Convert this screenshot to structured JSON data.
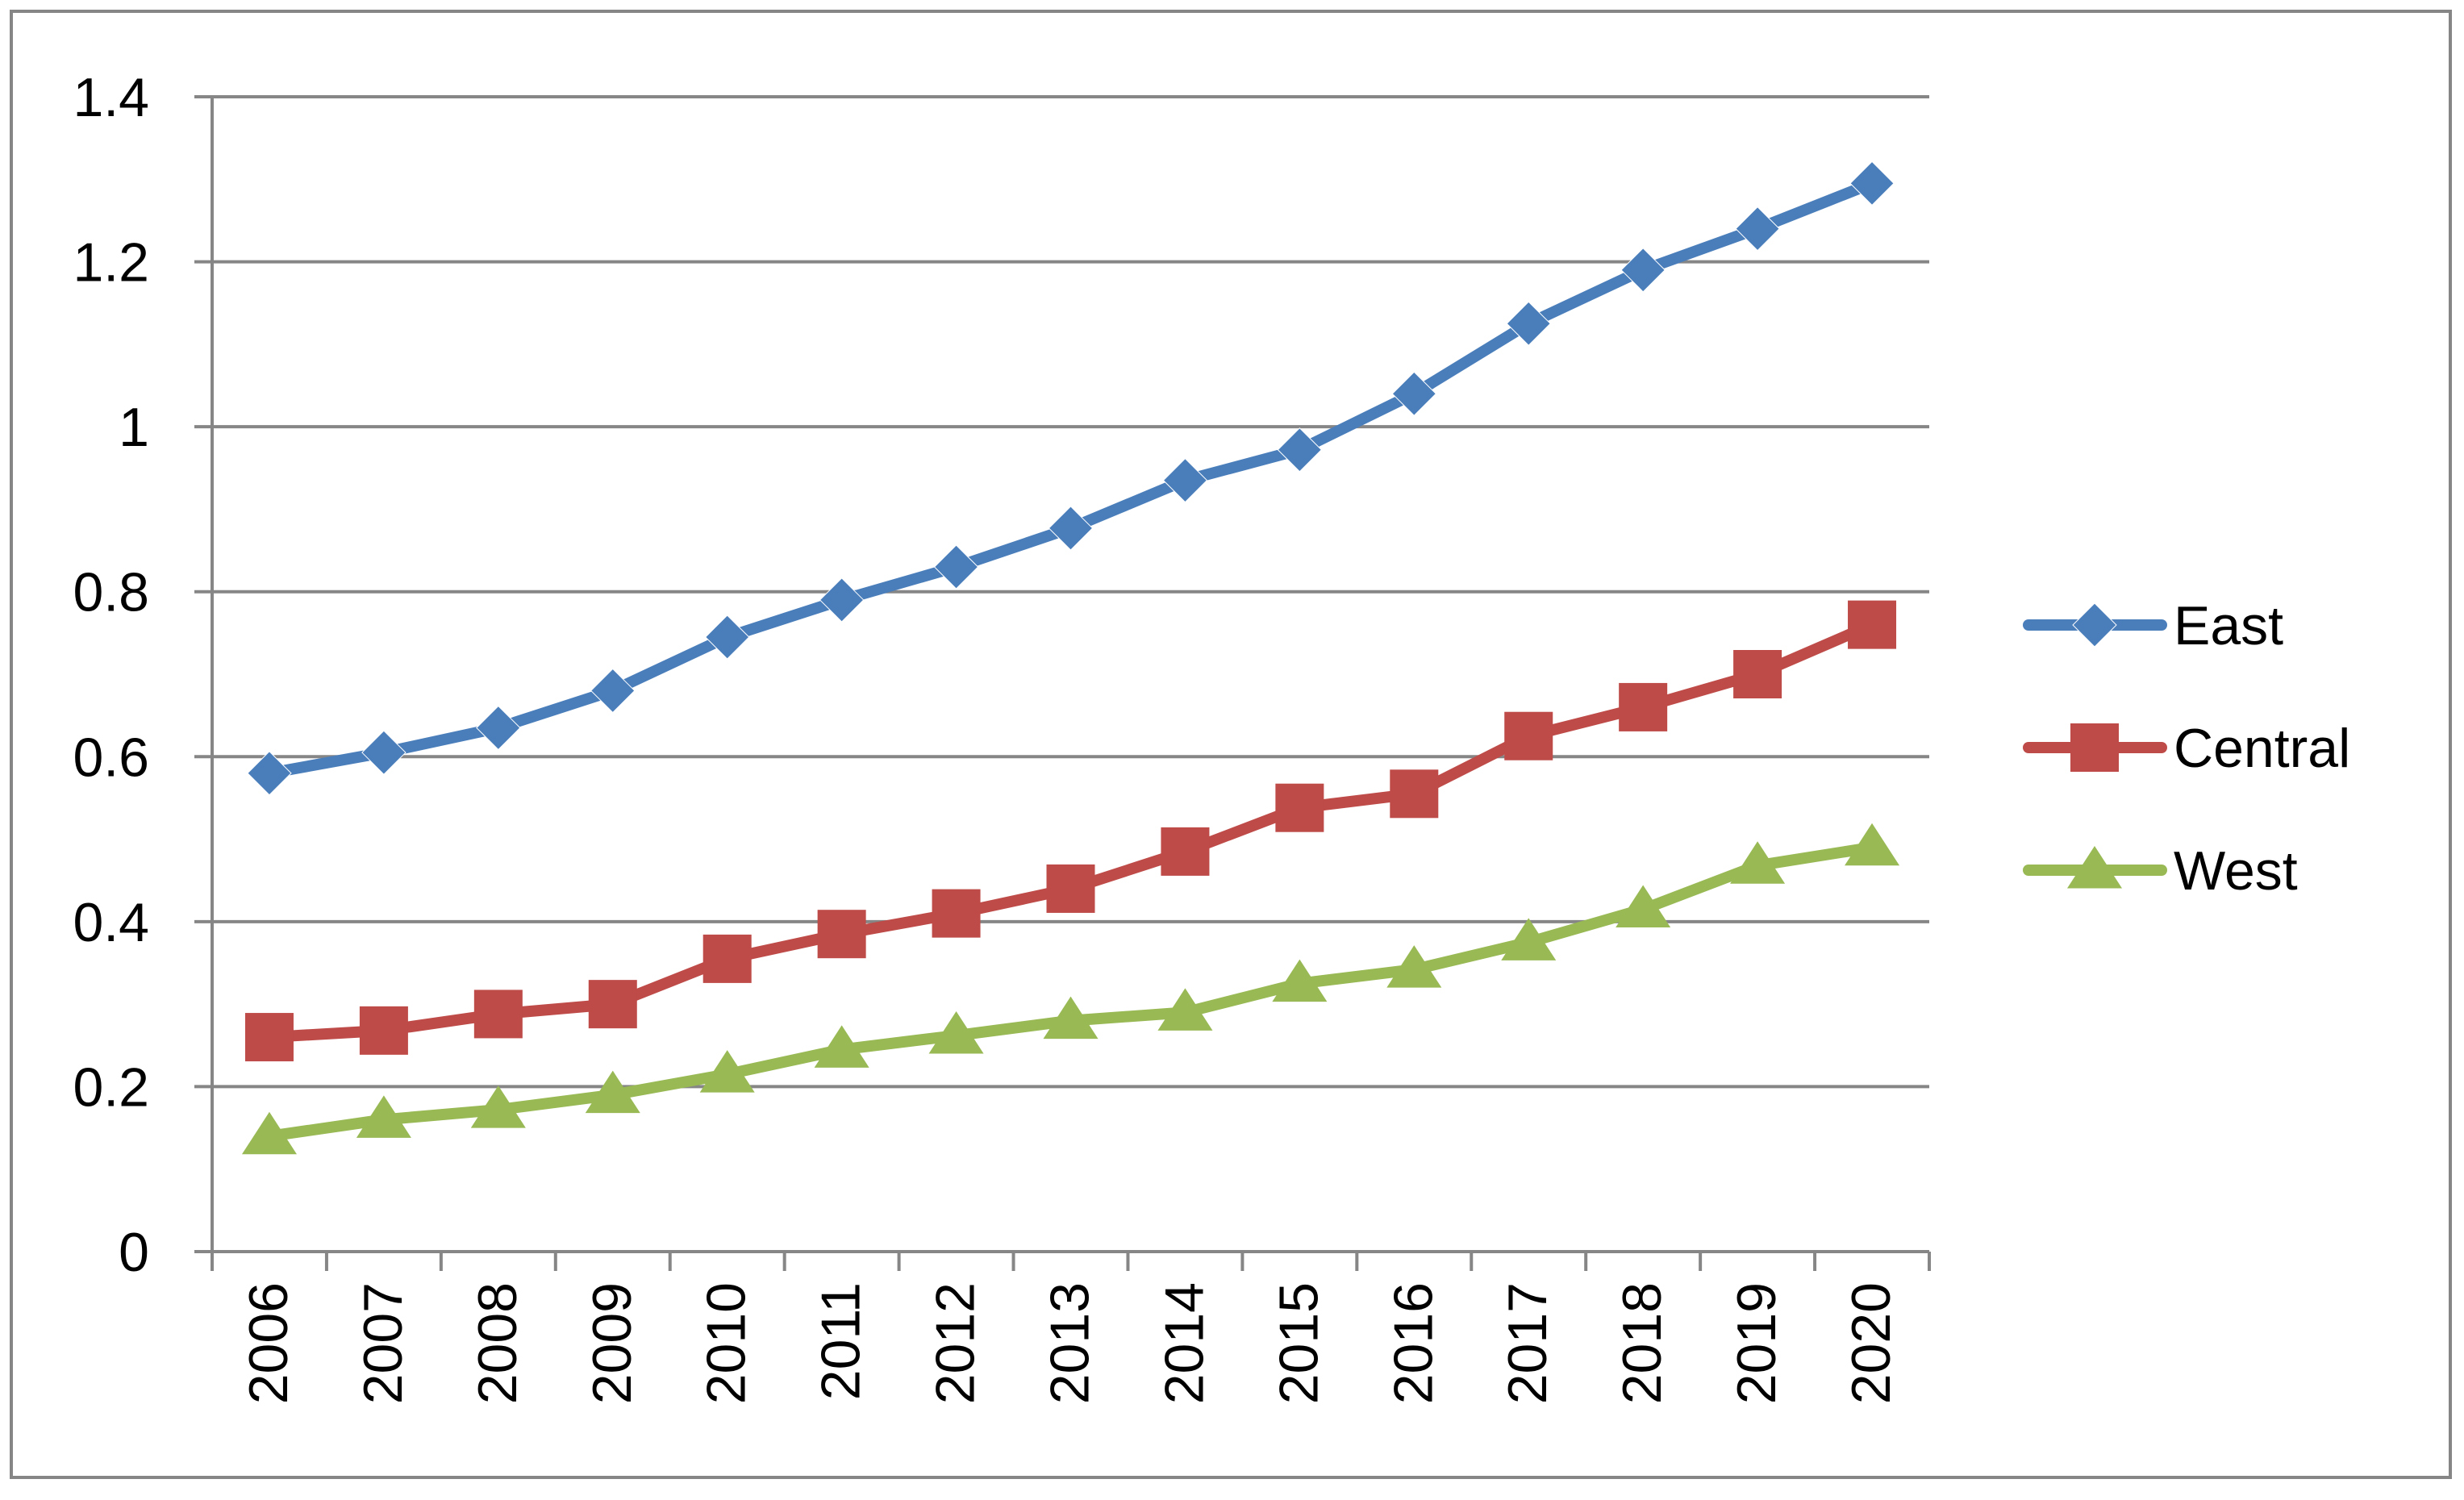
{
  "chart_data": {
    "type": "line",
    "title": "",
    "xlabel": "",
    "ylabel": "",
    "categories": [
      "2006",
      "2007",
      "2008",
      "2009",
      "2010",
      "2011",
      "2012",
      "2013",
      "2014",
      "2015",
      "2016",
      "2017",
      "2018",
      "2019",
      "2020"
    ],
    "ylim": [
      0,
      1.4
    ],
    "yticks": [
      0,
      0.2,
      0.4,
      0.6,
      0.8,
      1,
      1.2,
      1.4
    ],
    "ytick_labels": [
      "0",
      "0.2",
      "0.4",
      "0.6",
      "0.8",
      "1",
      "1.2",
      "1.4"
    ],
    "grid": true,
    "legend_position": "right",
    "series": [
      {
        "name": "East",
        "marker": "diamond",
        "color": "#4A7EBB",
        "values": [
          0.58,
          0.605,
          0.635,
          0.68,
          0.745,
          0.79,
          0.83,
          0.877,
          0.935,
          0.972,
          1.04,
          1.125,
          1.19,
          1.24,
          1.295
        ]
      },
      {
        "name": "Central",
        "marker": "square",
        "color": "#BE4B48",
        "values": [
          0.26,
          0.268,
          0.288,
          0.3,
          0.355,
          0.385,
          0.41,
          0.44,
          0.485,
          0.538,
          0.555,
          0.625,
          0.66,
          0.7,
          0.76
        ]
      },
      {
        "name": "West",
        "marker": "triangle",
        "color": "#98B954",
        "values": [
          0.14,
          0.16,
          0.172,
          0.19,
          0.215,
          0.245,
          0.262,
          0.28,
          0.29,
          0.325,
          0.342,
          0.375,
          0.415,
          0.468,
          0.49
        ]
      }
    ]
  }
}
